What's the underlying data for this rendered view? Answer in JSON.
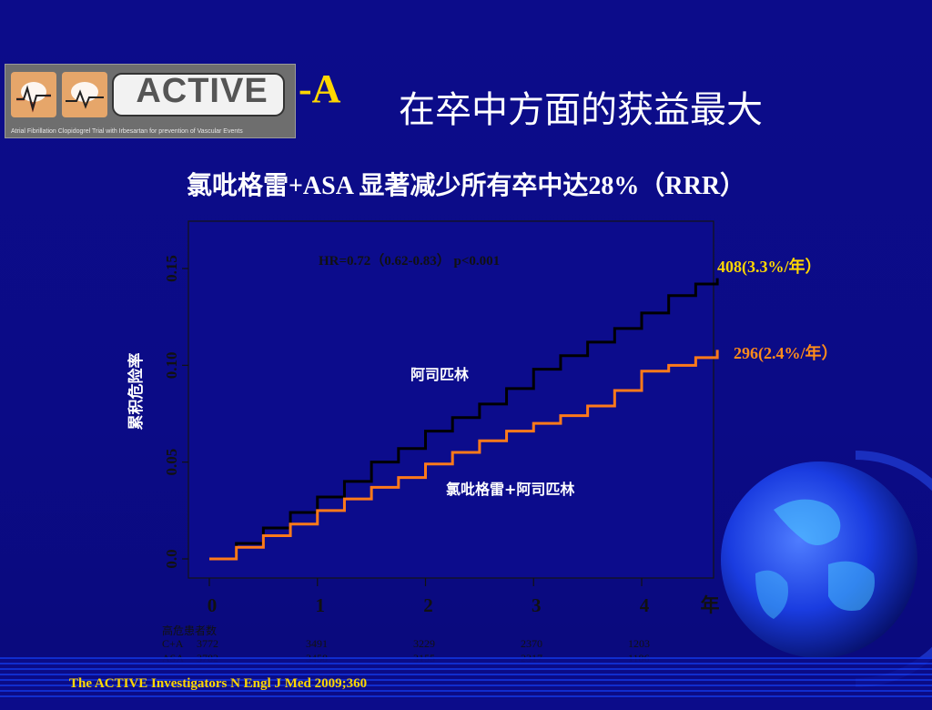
{
  "logo": {
    "text": "ACTIVE",
    "tagline": "Atrial Fibrillation Clopidogrel Trial with Irbesartan for prevention of Vascular Events"
  },
  "header": {
    "suffix": "-A",
    "title": "在卒中方面的获益最大"
  },
  "subtitle": "氯吡格雷+ASA  显著减少所有卒中达28%（RRR）",
  "chart_data": {
    "type": "line",
    "hr_text": "HR=0.72（0.62-0.83） p<0.001",
    "ylabel": "累积危险率",
    "xlabel": "年",
    "ylim": [
      0,
      0.15
    ],
    "xlim": [
      0,
      4.7
    ],
    "y_ticks": [
      "0.0",
      "0.05",
      "0.10",
      "0.15"
    ],
    "x_ticks": [
      "0",
      "1",
      "2",
      "3",
      "4"
    ],
    "series": [
      {
        "name": "阿司匹林",
        "color": "#000000",
        "end_label": "408(3.3%/年）",
        "end_label_color": "#ffd700",
        "points": [
          [
            0,
            0
          ],
          [
            0.25,
            0.008
          ],
          [
            0.5,
            0.016
          ],
          [
            0.75,
            0.024
          ],
          [
            1.0,
            0.032
          ],
          [
            1.25,
            0.04
          ],
          [
            1.5,
            0.05
          ],
          [
            1.75,
            0.057
          ],
          [
            2.0,
            0.066
          ],
          [
            2.25,
            0.073
          ],
          [
            2.5,
            0.08
          ],
          [
            2.75,
            0.088
          ],
          [
            3.0,
            0.098
          ],
          [
            3.25,
            0.105
          ],
          [
            3.5,
            0.112
          ],
          [
            3.75,
            0.119
          ],
          [
            4.0,
            0.127
          ],
          [
            4.25,
            0.136
          ],
          [
            4.5,
            0.142
          ],
          [
            4.7,
            0.145
          ]
        ]
      },
      {
        "name": "氯吡格雷+阿司匹林",
        "color": "#ff7a1a",
        "end_label": "296(2.4%/年）",
        "end_label_color": "#ff8c1a",
        "points": [
          [
            0,
            0
          ],
          [
            0.25,
            0.006
          ],
          [
            0.5,
            0.012
          ],
          [
            0.75,
            0.018
          ],
          [
            1.0,
            0.025
          ],
          [
            1.25,
            0.031
          ],
          [
            1.5,
            0.037
          ],
          [
            1.75,
            0.042
          ],
          [
            2.0,
            0.049
          ],
          [
            2.25,
            0.055
          ],
          [
            2.5,
            0.061
          ],
          [
            2.75,
            0.066
          ],
          [
            3.0,
            0.07
          ],
          [
            3.25,
            0.074
          ],
          [
            3.5,
            0.079
          ],
          [
            3.75,
            0.087
          ],
          [
            4.0,
            0.097
          ],
          [
            4.25,
            0.1
          ],
          [
            4.5,
            0.104
          ],
          [
            4.7,
            0.108
          ]
        ]
      }
    ],
    "risk_table": {
      "header": "高危患者数",
      "rows": [
        {
          "label": "C+A",
          "values": [
            "3772",
            "3491",
            "3229",
            "2370",
            "1203"
          ]
        },
        {
          "label": "ASA",
          "values": [
            "3782",
            "3458",
            "3155",
            "2317",
            "1186"
          ]
        }
      ]
    }
  },
  "footnote": "The ACTIVE Investigators N Engl J Med 2009;360"
}
